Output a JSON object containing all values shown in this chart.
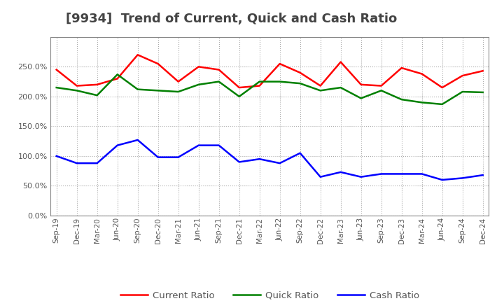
{
  "title": "[9934]  Trend of Current, Quick and Cash Ratio",
  "x_labels": [
    "Sep-19",
    "Dec-19",
    "Mar-20",
    "Jun-20",
    "Sep-20",
    "Dec-20",
    "Mar-21",
    "Jun-21",
    "Sep-21",
    "Dec-21",
    "Mar-22",
    "Jun-22",
    "Sep-22",
    "Dec-22",
    "Mar-23",
    "Jun-23",
    "Sep-23",
    "Dec-23",
    "Mar-24",
    "Jun-24",
    "Sep-24",
    "Dec-24"
  ],
  "current_ratio": [
    245,
    218,
    220,
    230,
    270,
    255,
    225,
    250,
    245,
    215,
    218,
    255,
    240,
    218,
    258,
    220,
    218,
    248,
    238,
    215,
    235,
    243
  ],
  "quick_ratio": [
    215,
    210,
    202,
    237,
    212,
    210,
    208,
    220,
    225,
    200,
    225,
    225,
    222,
    210,
    215,
    197,
    210,
    195,
    190,
    187,
    208,
    207
  ],
  "cash_ratio": [
    100,
    88,
    88,
    118,
    127,
    98,
    98,
    118,
    118,
    90,
    95,
    88,
    105,
    65,
    73,
    65,
    70,
    70,
    70,
    60,
    63,
    68
  ],
  "current_color": "#ff0000",
  "quick_color": "#008000",
  "cash_color": "#0000ff",
  "ylim": [
    0,
    300
  ],
  "yticks": [
    0,
    50,
    100,
    150,
    200,
    250
  ],
  "background_color": "#ffffff",
  "grid_color": "#aaaaaa",
  "title_fontsize": 13,
  "title_color": "#444444"
}
